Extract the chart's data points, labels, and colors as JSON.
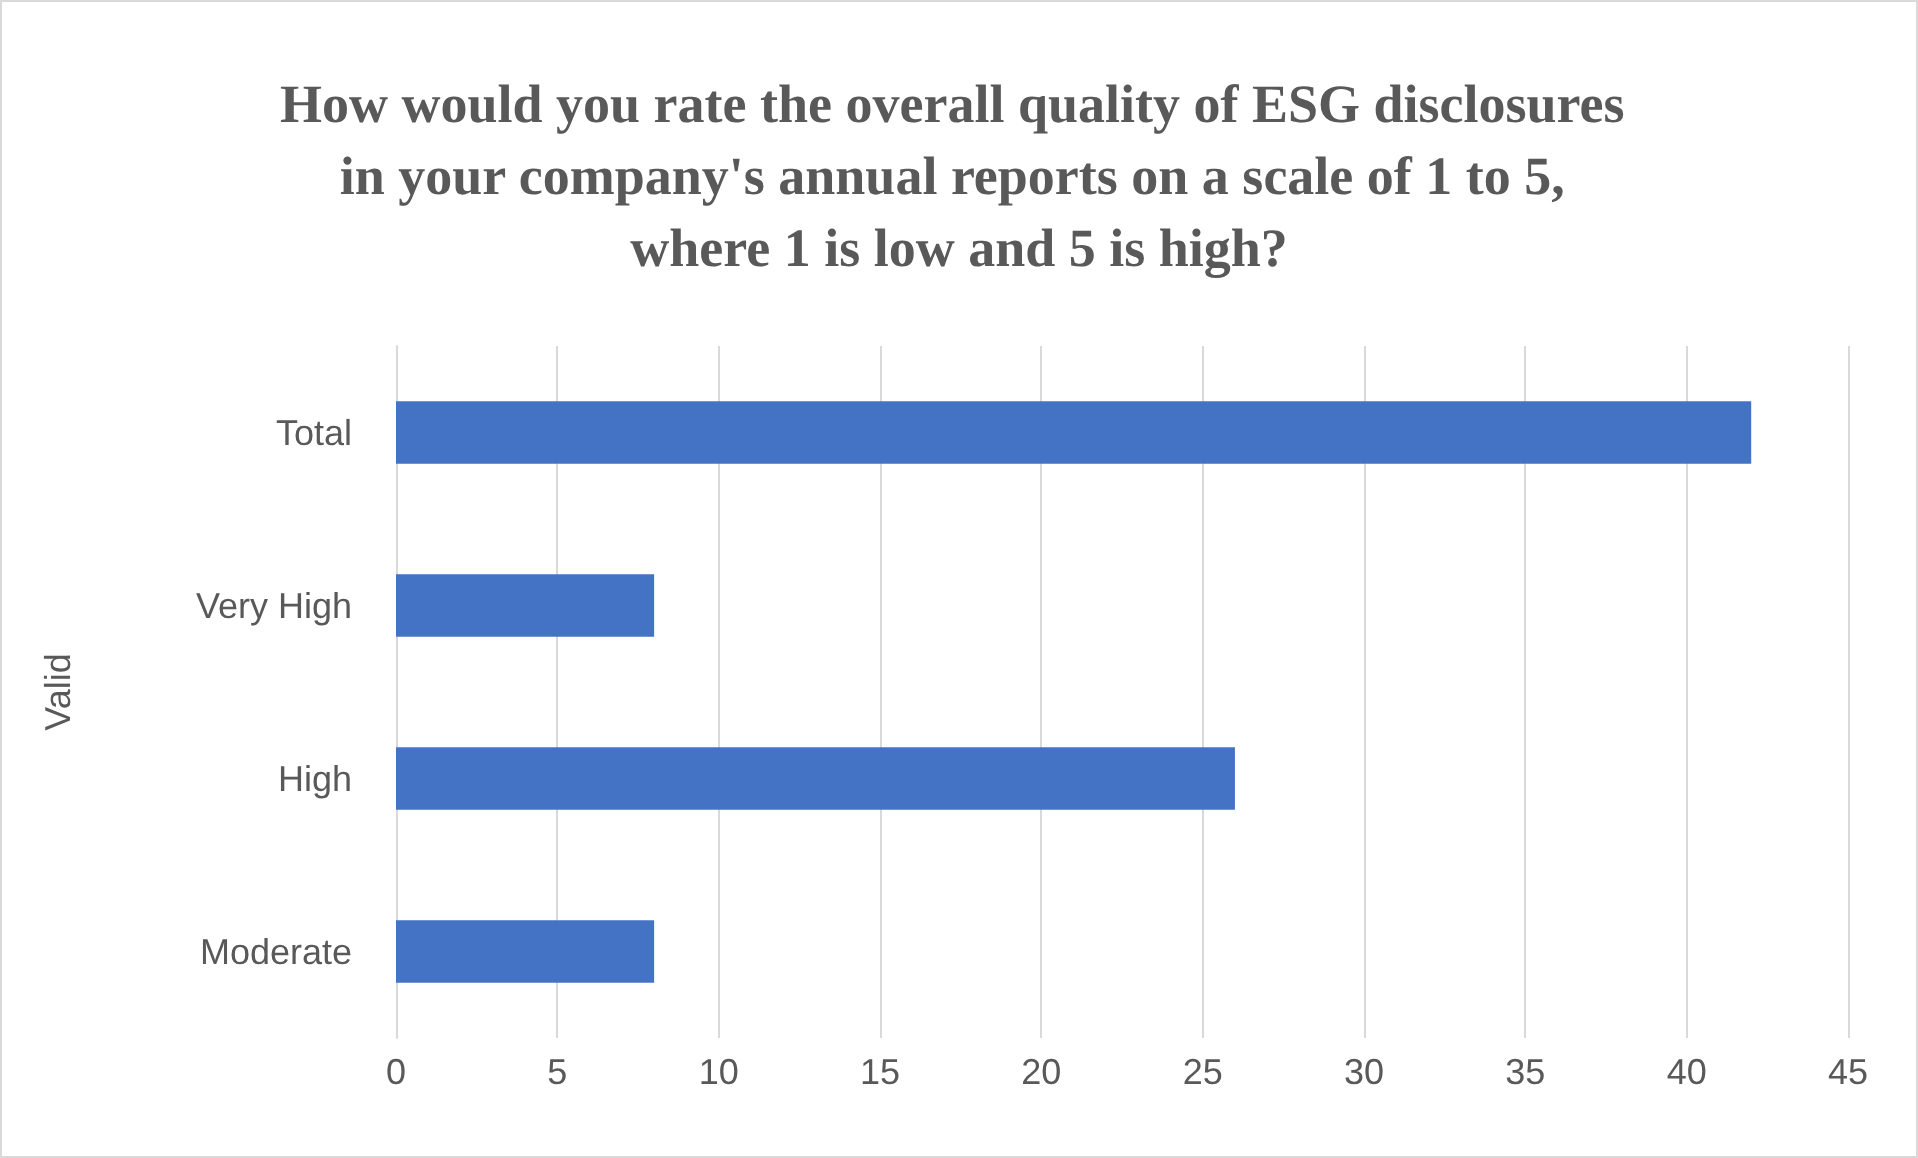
{
  "chart_data": {
    "type": "bar",
    "orientation": "horizontal",
    "title": "How would you rate the overall quality of ESG disclosures in your company's annual reports on a scale of 1 to 5, where 1 is low and 5 is high?",
    "ylabel": "Valid",
    "categories": [
      "Total",
      "Very High",
      "High",
      "Moderate"
    ],
    "values": [
      42,
      8,
      26,
      8
    ],
    "color": "#4472c4",
    "xlim": [
      0,
      45
    ],
    "xticks": [
      0,
      5,
      10,
      15,
      20,
      25,
      30,
      35,
      40,
      45
    ],
    "grid": "x"
  }
}
